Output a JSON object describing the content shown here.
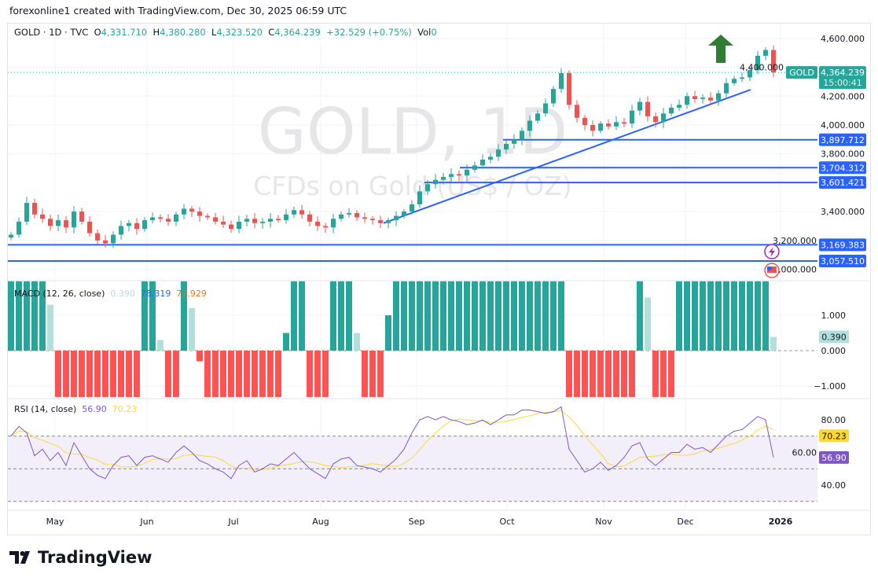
{
  "credit": "forexonline1 created with TradingView.com, Dec 30, 2025 06:59 UTC",
  "legend": {
    "symbol": "GOLD · 1D · TVC",
    "o_label": "O",
    "open": "4,331.710",
    "h_label": "H",
    "high": "4,380.280",
    "l_label": "L",
    "low": "4,323.520",
    "c_label": "C",
    "close": "4,364.239",
    "change": "+32.529 (+0.75%)",
    "vol_label": "Vol",
    "vol": "0"
  },
  "watermark": {
    "title": "GOLD, 1D",
    "subtitle": "CFDs on Gold (US$ / OZ)"
  },
  "price_tag": {
    "symbol": "GOLD",
    "price": "4,364.239",
    "countdown": "15:00:41",
    "color": "#26a69a"
  },
  "colors": {
    "up": "#26a69a",
    "down": "#ef5350",
    "line": "#2962ff",
    "rsi": "#7e57c2",
    "rsi_ma": "#fdd835",
    "arrow": "#2e7d32"
  },
  "macd": {
    "title": "MACD (12, 26, close)",
    "hist": "0.390",
    "macd": "78.319",
    "signal": "77.929",
    "tag": "0.390",
    "ticks": [
      "1.000",
      "0.000",
      "−1.000"
    ]
  },
  "rsi": {
    "title": "RSI (14, close)",
    "value": "56.90",
    "ma": "70.23",
    "ticks": [
      "80.00",
      "60.00",
      "40.00"
    ]
  },
  "chart_data": {
    "type": "candlestick",
    "x_ticks": [
      "May",
      "Jun",
      "Jul",
      "Aug",
      "Sep",
      "Oct",
      "Nov",
      "Dec",
      "2026"
    ],
    "y_ticks": [
      4600,
      4400,
      4200,
      4000,
      3800,
      3400,
      3200,
      3000
    ],
    "y_tick_labels": [
      "4,600.000",
      "4,400.000",
      "4,200.000",
      "4,000.000",
      "3,800.000",
      "3,400.000",
      "3,200.000",
      "3,000.000"
    ],
    "levels": [
      {
        "value": 3897.712,
        "label": "3,897.712"
      },
      {
        "value": 3704.312,
        "label": "3,704.312"
      },
      {
        "value": 3601.421,
        "label": "3,601.421"
      },
      {
        "value": 3169.383,
        "label": "3,169.383"
      },
      {
        "value": 3057.51,
        "label": "3,057.510"
      }
    ],
    "trendline": [
      {
        "value": 3320,
        "date": "Aug 20"
      },
      {
        "value": 4245,
        "date": "Dec 26"
      }
    ],
    "closes": [
      3240,
      3330,
      3460,
      3380,
      3350,
      3300,
      3340,
      3290,
      3400,
      3330,
      3250,
      3200,
      3180,
      3240,
      3300,
      3320,
      3280,
      3340,
      3360,
      3350,
      3330,
      3380,
      3420,
      3400,
      3370,
      3360,
      3330,
      3310,
      3280,
      3330,
      3350,
      3320,
      3330,
      3350,
      3340,
      3380,
      3410,
      3380,
      3330,
      3300,
      3290,
      3350,
      3380,
      3390,
      3360,
      3350,
      3340,
      3320,
      3340,
      3370,
      3400,
      3450,
      3540,
      3590,
      3620,
      3640,
      3660,
      3650,
      3690,
      3720,
      3760,
      3780,
      3830,
      3870,
      3900,
      3960,
      4030,
      4080,
      4150,
      4250,
      4360,
      4140,
      4050,
      4000,
      3960,
      4010,
      3990,
      4020,
      4010,
      4100,
      4160,
      4060,
      4020,
      4080,
      4120,
      4140,
      4200,
      4180,
      4190,
      4170,
      4220,
      4290,
      4320,
      4330,
      4380,
      4480,
      4520,
      4364.239
    ],
    "macd_hist": [
      2,
      2,
      2,
      2,
      2,
      1.3,
      -2,
      -2,
      -2,
      -2,
      -2,
      -2,
      -2,
      -2,
      -2,
      -2,
      -2,
      2,
      2,
      0.3,
      -2,
      -2,
      2,
      1.2,
      -0.3,
      -2,
      -2,
      -2,
      -2,
      -2,
      -2,
      -2,
      -2,
      -2,
      -2,
      0.5,
      2,
      2,
      -2,
      -2,
      -2,
      2,
      2,
      2,
      0.5,
      -2,
      -2,
      -2,
      1,
      2,
      2,
      2,
      2,
      2,
      2,
      2,
      2,
      2,
      2,
      2,
      2,
      2,
      2,
      2,
      2,
      2,
      2,
      2,
      2,
      2,
      2,
      -2,
      -2,
      -2,
      -2,
      -2,
      -2,
      -2,
      -2,
      -2,
      2,
      1.5,
      -2,
      -2,
      -2,
      2,
      2,
      2,
      2,
      2,
      2,
      2,
      2,
      2,
      2,
      2,
      2,
      0.39
    ],
    "rsi": [
      70,
      76,
      72,
      58,
      62,
      55,
      60,
      52,
      66,
      58,
      50,
      46,
      44,
      52,
      57,
      58,
      52,
      57,
      58,
      56,
      54,
      60,
      64,
      60,
      55,
      53,
      50,
      48,
      44,
      52,
      55,
      48,
      50,
      53,
      52,
      56,
      60,
      55,
      50,
      47,
      44,
      53,
      56,
      57,
      52,
      51,
      50,
      48,
      52,
      56,
      62,
      72,
      80,
      82,
      80,
      82,
      80,
      79,
      77,
      78,
      80,
      77,
      80,
      83,
      83,
      86,
      86,
      85,
      84,
      85,
      88,
      62,
      55,
      48,
      50,
      54,
      49,
      52,
      57,
      64,
      66,
      56,
      52,
      56,
      60,
      60,
      65,
      62,
      63,
      60,
      65,
      70,
      73,
      74,
      78,
      82,
      80,
      56.9
    ]
  },
  "footer": {
    "brand": "TradingView"
  }
}
